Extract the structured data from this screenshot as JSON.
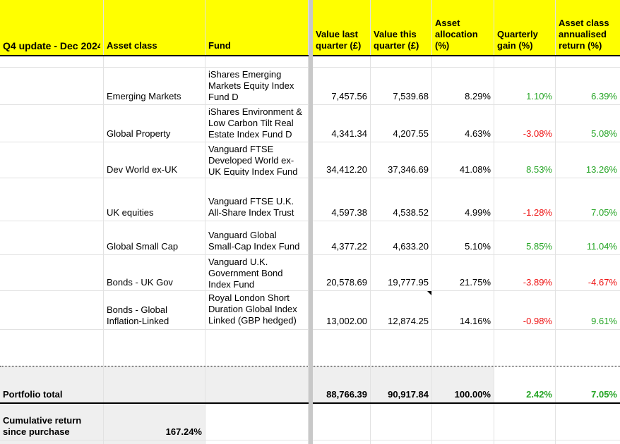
{
  "colors": {
    "positive": "#26a526",
    "negative": "#ee1111",
    "header_bg": "#ffff00",
    "band_bg": "#efefef"
  },
  "header": {
    "title": "Q4 update - Dec 2024",
    "asset_class": "Asset class",
    "fund": "Fund",
    "value_last": "Value last quarter (£)",
    "value_this": "Value this quarter (£)",
    "allocation": "Asset allocation (%)",
    "gain": "Quarterly gain (%)",
    "annual": "Asset class annualised return (%)"
  },
  "rows": [
    {
      "asset_class": "Emerging Markets",
      "fund": "iShares Emerging Markets Equity Index Fund D",
      "value_last": "7,457.56",
      "value_this": "7,539.68",
      "allocation": "8.29%",
      "gain": "1.10%",
      "annual": "6.39%",
      "note": false
    },
    {
      "asset_class": "Global Property",
      "fund": "iShares Environment & Low Carbon Tilt Real Estate Index Fund D",
      "value_last": "4,341.34",
      "value_this": "4,207.55",
      "allocation": "4.63%",
      "gain": "-3.08%",
      "annual": "5.08%",
      "note": false
    },
    {
      "asset_class": "Dev World ex-UK",
      "fund": "Vanguard FTSE Developed World ex-UK Equity Index Fund",
      "value_last": "34,412.20",
      "value_this": "37,346.69",
      "allocation": "41.08%",
      "gain": "8.53%",
      "annual": "13.26%",
      "note": false
    },
    {
      "asset_class": "UK equities",
      "fund": "Vanguard FTSE U.K. All-Share Index Trust",
      "value_last": "4,597.38",
      "value_this": "4,538.52",
      "allocation": "4.99%",
      "gain": "-1.28%",
      "annual": "7.05%",
      "note": false
    },
    {
      "asset_class": "Global Small Cap",
      "fund": "Vanguard Global Small-Cap Index Fund",
      "value_last": "4,377.22",
      "value_this": "4,633.20",
      "allocation": "5.10%",
      "gain": "5.85%",
      "annual": "11.04%",
      "note": false
    },
    {
      "asset_class": "Bonds - UK Gov",
      "fund": "Vanguard U.K. Government Bond Index Fund",
      "value_last": "20,578.69",
      "value_this": "19,777.95",
      "allocation": "21.75%",
      "gain": "-3.89%",
      "annual": "-4.67%",
      "note": false
    },
    {
      "asset_class": "Bonds - Global Inflation-Linked",
      "fund": "Royal London Short Duration Global Index Linked (GBP hedged) M I",
      "value_last": "13,002.00",
      "value_this": "12,874.25",
      "allocation": "14.16%",
      "gain": "-0.98%",
      "annual": "9.61%",
      "note": true
    }
  ],
  "total": {
    "label": "Portfolio total",
    "value_last": "88,766.39",
    "value_this": "90,917.84",
    "allocation": "100.00%",
    "gain": "2.42%",
    "annual": "7.05%"
  },
  "cumulative": {
    "label": "Cumulative return since purchase",
    "value": "167.24%"
  }
}
